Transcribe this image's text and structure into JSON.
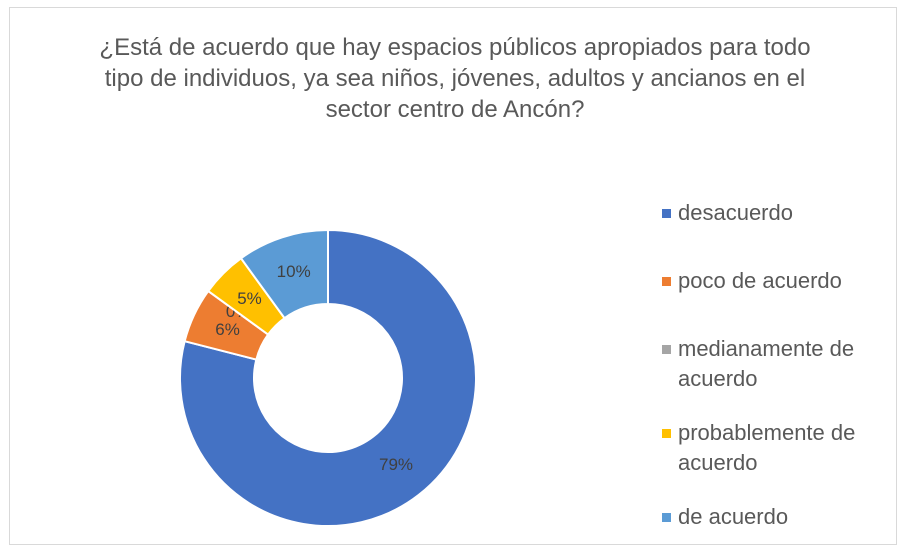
{
  "chart_data": {
    "type": "donut",
    "title": "¿Está de acuerdo que hay espacios públicos apropiados para todo tipo de individuos, ya sea niños, jóvenes, adultos y ancianos en el sector centro de Ancón?",
    "categories": [
      "desacuerdo",
      "poco de acuerdo",
      "medianamente de acuerdo",
      "probablemente de acuerdo",
      "de acuerdo"
    ],
    "values": [
      79,
      6,
      0,
      5,
      10
    ],
    "value_labels": [
      "79%",
      "6%",
      "0%",
      "5%",
      "10%"
    ],
    "colors": [
      "#4472c4",
      "#ed7d31",
      "#a5a5a5",
      "#ffc000",
      "#5b9bd5"
    ],
    "legend": "right"
  }
}
